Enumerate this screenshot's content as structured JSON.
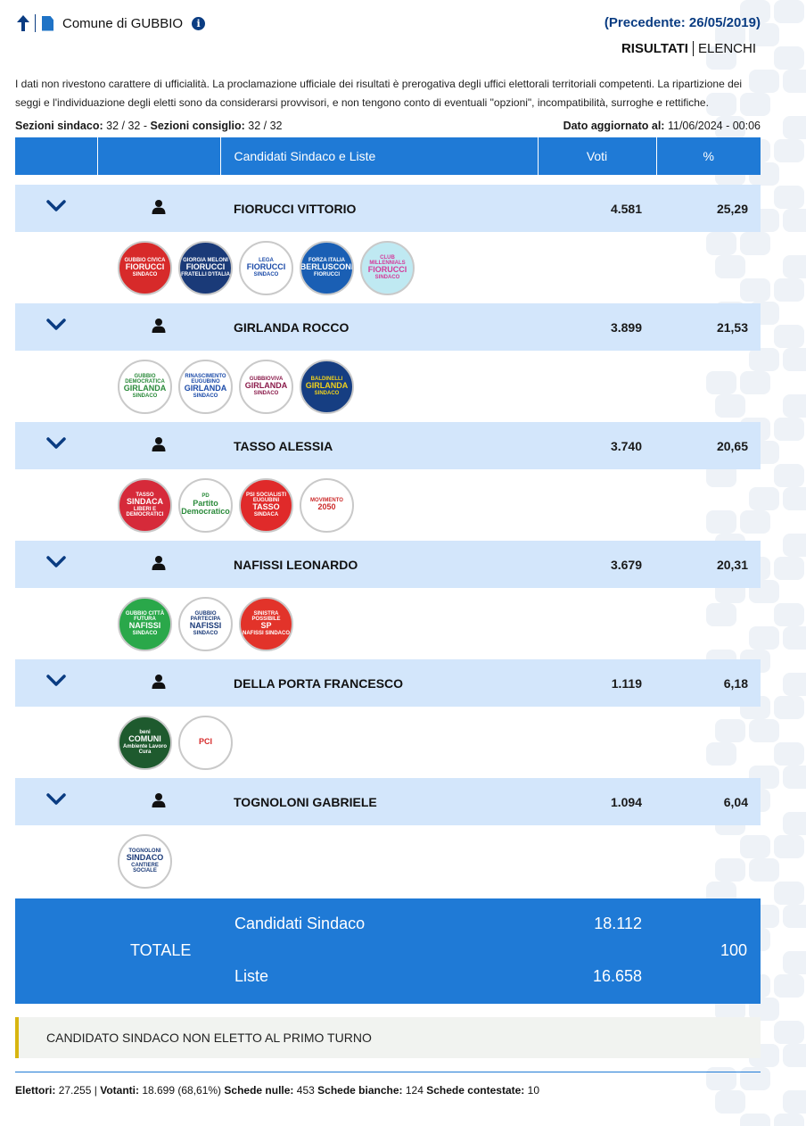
{
  "header": {
    "comune": "Comune di GUBBIO",
    "precedente": "(Precedente: 26/05/2019)",
    "tab_risultati": "RISULTATI",
    "tab_elenchi": "ELENCHI"
  },
  "notice": "I dati non rivestono carattere di ufficialità. La proclamazione ufficiale dei risultati è prerogativa degli uffici elettorali territoriali competenti. La ripartizione dei seggi e l'individuazione degli eletti sono da considerarsi provvisori, e non tengono conto di eventuali \"opzioni\", incompatibilità, surroghe e rettifiche.",
  "meta": {
    "sezioni_sindaco_label": "Sezioni sindaco:",
    "sezioni_sindaco_value": "32 / 32",
    "sep": "-",
    "sezioni_consiglio_label": "Sezioni consiglio:",
    "sezioni_consiglio_value": "32 / 32",
    "aggiornato_label": "Dato aggiornato al:",
    "aggiornato_value": "11/06/2024 - 00:06"
  },
  "table": {
    "col_candidati": "Candidati Sindaco e Liste",
    "col_voti": "Voti",
    "col_pct": "%"
  },
  "candidates": [
    {
      "name": "FIORUCCI VITTORIO",
      "voti": "4.581",
      "pct": "25,29",
      "lists": [
        {
          "top": "GUBBIO CIVICA",
          "main": "FIORUCCI",
          "sub": "SINDACO",
          "bg": "#d72a2a",
          "fg": "#ffffff"
        },
        {
          "top": "GIORGIA MELONI",
          "main": "FIORUCCI",
          "sub": "FRATELLI D'ITALIA",
          "bg": "#1a3a78",
          "fg": "#ffffff"
        },
        {
          "top": "LEGA",
          "main": "FIORUCCI",
          "sub": "SINDACO",
          "bg": "#ffffff",
          "fg": "#1a4aa8"
        },
        {
          "top": "FORZA ITALIA",
          "main": "BERLUSCONI",
          "sub": "FIORUCCI",
          "bg": "#1a5fb4",
          "fg": "#ffffff"
        },
        {
          "top": "CLUB MILLENNIALS",
          "main": "FIORUCCI",
          "sub": "SINDACO",
          "bg": "#bfe9f2",
          "fg": "#d33a9a"
        }
      ]
    },
    {
      "name": "GIRLANDA ROCCO",
      "voti": "3.899",
      "pct": "21,53",
      "lists": [
        {
          "top": "GUBBIO DEMOCRATICA",
          "main": "GIRLANDA",
          "sub": "SINDACO",
          "bg": "#ffffff",
          "fg": "#2a8a3a"
        },
        {
          "top": "RINASCIMENTO EUGUBINO",
          "main": "GIRLANDA",
          "sub": "SINDACO",
          "bg": "#ffffff",
          "fg": "#1a4aa8"
        },
        {
          "top": "GUBBIOVIVA",
          "main": "GIRLANDA",
          "sub": "SINDACO",
          "bg": "#ffffff",
          "fg": "#8a1a4a"
        },
        {
          "top": "BALDINELLI",
          "main": "GIRLANDA",
          "sub": "SINDACO",
          "bg": "#163e82",
          "fg": "#f2d21a"
        }
      ]
    },
    {
      "name": "TASSO ALESSIA",
      "voti": "3.740",
      "pct": "20,65",
      "lists": [
        {
          "top": "TASSO",
          "main": "SINDACA",
          "sub": "LIBERI E DEMOCRATICI",
          "bg": "#d62a3a",
          "fg": "#ffffff"
        },
        {
          "top": "PD",
          "main": "Partito Democratico",
          "sub": "",
          "bg": "#ffffff",
          "fg": "#2a8a3a"
        },
        {
          "top": "PSI SOCIALISTI EUGUBINI",
          "main": "TASSO",
          "sub": "SINDACA",
          "bg": "#e02a2a",
          "fg": "#ffffff"
        },
        {
          "top": "MOVIMENTO",
          "main": "2050",
          "sub": "",
          "bg": "#ffffff",
          "fg": "#cc2a2a"
        }
      ]
    },
    {
      "name": "NAFISSI LEONARDO",
      "voti": "3.679",
      "pct": "20,31",
      "lists": [
        {
          "top": "GUBBIO CITTÀ FUTURA",
          "main": "NAFISSI",
          "sub": "SINDACO",
          "bg": "#2aa84a",
          "fg": "#ffffff"
        },
        {
          "top": "GUBBIO PARTECIPA",
          "main": "NAFISSI",
          "sub": "SINDACO",
          "bg": "#ffffff",
          "fg": "#1a3a78"
        },
        {
          "top": "SINISTRA POSSIBILE",
          "main": "SP",
          "sub": "NAFISSI SINDACO",
          "bg": "#e2332a",
          "fg": "#ffffff"
        }
      ]
    },
    {
      "name": "DELLA PORTA FRANCESCO",
      "voti": "1.119",
      "pct": "6,18",
      "lists": [
        {
          "top": "beni",
          "main": "COMUNI",
          "sub": "Ambiente Lavoro Cura",
          "bg": "#1e5a2e",
          "fg": "#ffffff"
        },
        {
          "top": "",
          "main": "PCI",
          "sub": "",
          "bg": "#ffffff",
          "fg": "#d62a2a"
        }
      ]
    },
    {
      "name": "TOGNOLONI GABRIELE",
      "voti": "1.094",
      "pct": "6,04",
      "lists": [
        {
          "top": "TOGNOLONI",
          "main": "SINDACO",
          "sub": "CANTIERE SOCIALE",
          "bg": "#ffffff",
          "fg": "#1a3a78"
        }
      ]
    }
  ],
  "totale": {
    "label": "TOTALE",
    "candidati_label": "Candidati Sindaco",
    "candidati_value": "18.112",
    "liste_label": "Liste",
    "liste_value": "16.658",
    "pct": "100"
  },
  "status": "CANDIDATO SINDACO NON ELETTO AL PRIMO TURNO",
  "footer": {
    "elettori_label": "Elettori:",
    "elettori_value": "27.255",
    "pipe": "|",
    "votanti_label": "Votanti:",
    "votanti_value": "18.699 (68,61%)",
    "nulle_label": "Schede nulle:",
    "nulle_value": "453",
    "bianche_label": "Schede bianche:",
    "bianche_value": "124",
    "contestate_label": "Schede contestate:",
    "contestate_value": "10"
  }
}
